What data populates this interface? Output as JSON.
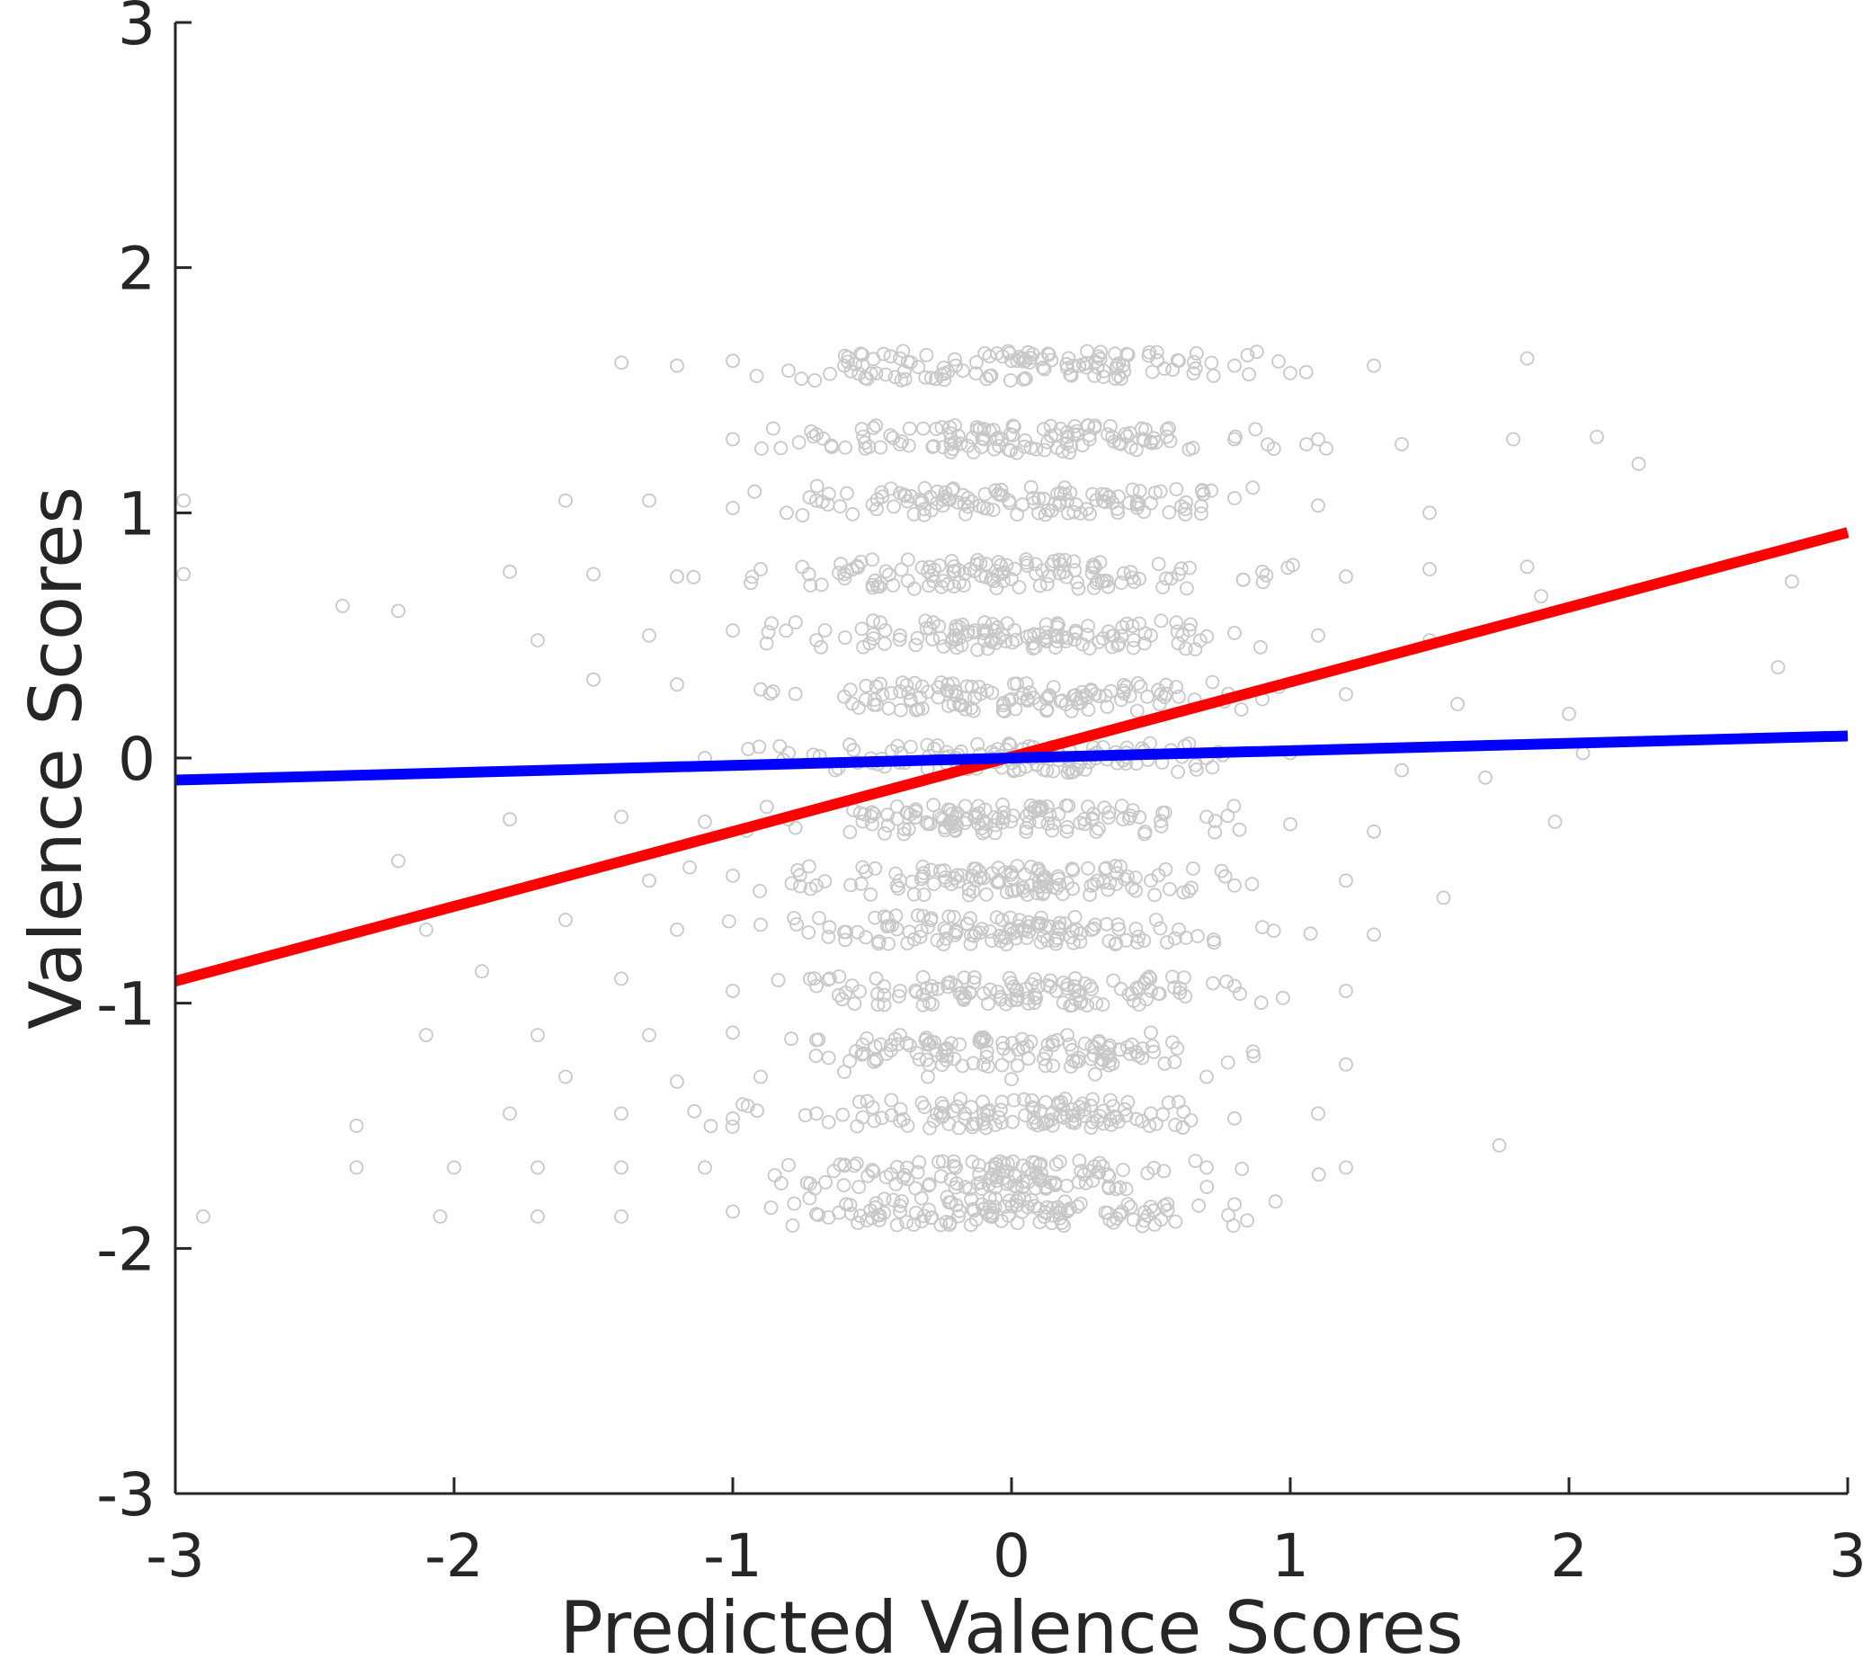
{
  "chart_data": {
    "type": "scatter",
    "title": "",
    "xlabel": "Predicted Valence Scores",
    "ylabel": "Valence Scores",
    "xlim": [
      -3,
      3
    ],
    "ylim": [
      -3,
      3
    ],
    "xticks": [
      -3,
      -2,
      -1,
      0,
      1,
      2,
      3
    ],
    "yticks": [
      -3,
      -2,
      -1,
      0,
      1,
      2,
      3
    ],
    "xtick_labels": [
      "-3",
      "-2",
      "-1",
      "0",
      "1",
      "2",
      "3"
    ],
    "ytick_labels": [
      "-3",
      "-2",
      "-1",
      "0",
      "1",
      "2",
      "3"
    ],
    "grid": false,
    "legend": "none",
    "scatter": {
      "marker": "open-circle",
      "color": "#c8c8c8",
      "y_levels": [
        1.6,
        1.3,
        1.05,
        0.75,
        0.5,
        0.25,
        0.0,
        -0.25,
        -0.5,
        -0.7,
        -0.95,
        -1.2,
        -1.45,
        -1.7,
        -1.85
      ],
      "points": [
        [
          -1.2,
          1.6
        ],
        [
          -1.0,
          1.62
        ],
        [
          -0.8,
          1.58
        ],
        [
          -0.6,
          1.6
        ],
        [
          -0.4,
          1.63
        ],
        [
          -0.2,
          1.6
        ],
        [
          0.0,
          1.62
        ],
        [
          0.2,
          1.59
        ],
        [
          0.4,
          1.6
        ],
        [
          0.6,
          1.62
        ],
        [
          0.8,
          1.6
        ],
        [
          1.0,
          1.57
        ],
        [
          1.3,
          1.6
        ],
        [
          1.85,
          1.63
        ],
        [
          -1.0,
          1.3
        ],
        [
          -0.7,
          1.32
        ],
        [
          -0.4,
          1.28
        ],
        [
          -0.1,
          1.3
        ],
        [
          0.2,
          1.31
        ],
        [
          0.5,
          1.29
        ],
        [
          0.8,
          1.3
        ],
        [
          1.1,
          1.3
        ],
        [
          1.4,
          1.28
        ],
        [
          1.8,
          1.3
        ],
        [
          2.1,
          1.31
        ],
        [
          -1.6,
          1.05
        ],
        [
          -1.3,
          1.05
        ],
        [
          -1.0,
          1.02
        ],
        [
          -0.7,
          1.05
        ],
        [
          -0.4,
          1.08
        ],
        [
          -0.1,
          1.02
        ],
        [
          0.2,
          1.05
        ],
        [
          0.5,
          1.04
        ],
        [
          0.8,
          1.06
        ],
        [
          1.1,
          1.03
        ],
        [
          1.5,
          1.0
        ],
        [
          2.25,
          1.2
        ],
        [
          -2.97,
          1.05
        ],
        [
          -2.97,
          0.75
        ],
        [
          -2.4,
          0.62
        ],
        [
          -2.2,
          0.6
        ],
        [
          -1.8,
          0.76
        ],
        [
          -1.5,
          0.75
        ],
        [
          -1.2,
          0.74
        ],
        [
          -0.9,
          0.77
        ],
        [
          -0.6,
          0.75
        ],
        [
          -0.3,
          0.76
        ],
        [
          0.0,
          0.73
        ],
        [
          0.3,
          0.78
        ],
        [
          0.6,
          0.75
        ],
        [
          0.9,
          0.76
        ],
        [
          1.2,
          0.74
        ],
        [
          1.5,
          0.77
        ],
        [
          1.85,
          0.78
        ],
        [
          2.8,
          0.72
        ],
        [
          -1.7,
          0.48
        ],
        [
          -1.3,
          0.5
        ],
        [
          -1.0,
          0.52
        ],
        [
          -0.7,
          0.48
        ],
        [
          -0.4,
          0.5
        ],
        [
          -0.1,
          0.52
        ],
        [
          0.2,
          0.49
        ],
        [
          0.5,
          0.5
        ],
        [
          0.8,
          0.51
        ],
        [
          1.1,
          0.5
        ],
        [
          1.5,
          0.48
        ],
        [
          1.9,
          0.66
        ],
        [
          -1.5,
          0.32
        ],
        [
          -1.2,
          0.3
        ],
        [
          -0.9,
          0.28
        ],
        [
          -0.6,
          0.25
        ],
        [
          -0.3,
          0.27
        ],
        [
          0.0,
          0.24
        ],
        [
          0.3,
          0.26
        ],
        [
          0.6,
          0.25
        ],
        [
          0.9,
          0.24
        ],
        [
          1.2,
          0.26
        ],
        [
          1.6,
          0.22
        ],
        [
          2.0,
          0.18
        ],
        [
          2.75,
          0.37
        ],
        [
          -1.1,
          0.0
        ],
        [
          -0.8,
          0.02
        ],
        [
          -0.5,
          -0.02
        ],
        [
          -0.2,
          0.0
        ],
        [
          0.1,
          0.01
        ],
        [
          0.4,
          -0.01
        ],
        [
          0.7,
          0.0
        ],
        [
          1.0,
          0.02
        ],
        [
          1.4,
          -0.05
        ],
        [
          1.7,
          -0.08
        ],
        [
          2.05,
          0.02
        ],
        [
          -2.2,
          -0.42
        ],
        [
          -1.8,
          -0.25
        ],
        [
          -1.4,
          -0.24
        ],
        [
          -1.1,
          -0.26
        ],
        [
          -0.8,
          -0.25
        ],
        [
          -0.5,
          -0.27
        ],
        [
          -0.2,
          -0.24
        ],
        [
          0.1,
          -0.26
        ],
        [
          0.4,
          -0.25
        ],
        [
          0.7,
          -0.24
        ],
        [
          1.0,
          -0.27
        ],
        [
          1.3,
          -0.3
        ],
        [
          1.95,
          -0.26
        ],
        [
          -1.3,
          -0.5
        ],
        [
          -1.0,
          -0.48
        ],
        [
          -0.7,
          -0.52
        ],
        [
          -0.4,
          -0.5
        ],
        [
          -0.1,
          -0.49
        ],
        [
          0.2,
          -0.51
        ],
        [
          0.5,
          -0.5
        ],
        [
          0.8,
          -0.52
        ],
        [
          1.2,
          -0.5
        ],
        [
          1.55,
          -0.57
        ],
        [
          -2.1,
          -0.7
        ],
        [
          -1.6,
          -0.66
        ],
        [
          -1.2,
          -0.7
        ],
        [
          -0.9,
          -0.68
        ],
        [
          -0.6,
          -0.71
        ],
        [
          -0.3,
          -0.69
        ],
        [
          0.0,
          -0.7
        ],
        [
          0.3,
          -0.68
        ],
        [
          0.6,
          -0.7
        ],
        [
          0.9,
          -0.69
        ],
        [
          1.3,
          -0.72
        ],
        [
          -1.9,
          -0.87
        ],
        [
          -1.4,
          -0.9
        ],
        [
          -1.0,
          -0.95
        ],
        [
          -0.7,
          -0.93
        ],
        [
          -0.4,
          -0.95
        ],
        [
          -0.1,
          -0.96
        ],
        [
          0.2,
          -0.94
        ],
        [
          0.5,
          -0.95
        ],
        [
          0.8,
          -0.93
        ],
        [
          1.2,
          -0.95
        ],
        [
          -2.1,
          -1.13
        ],
        [
          -1.7,
          -1.13
        ],
        [
          -1.3,
          -1.13
        ],
        [
          -1.0,
          -1.12
        ],
        [
          -0.7,
          -1.15
        ],
        [
          -0.4,
          -1.13
        ],
        [
          -0.1,
          -1.14
        ],
        [
          0.2,
          -1.13
        ],
        [
          0.5,
          -1.12
        ],
        [
          1.2,
          -1.25
        ],
        [
          -1.6,
          -1.3
        ],
        [
          -1.2,
          -1.32
        ],
        [
          -0.9,
          -1.3
        ],
        [
          -0.6,
          -1.28
        ],
        [
          -0.3,
          -1.3
        ],
        [
          0.0,
          -1.31
        ],
        [
          0.3,
          -1.29
        ],
        [
          0.7,
          -1.3
        ],
        [
          -2.35,
          -1.5
        ],
        [
          -1.8,
          -1.45
        ],
        [
          -1.4,
          -1.45
        ],
        [
          -1.0,
          -1.47
        ],
        [
          -0.7,
          -1.45
        ],
        [
          -0.4,
          -1.48
        ],
        [
          -0.1,
          -1.45
        ],
        [
          0.2,
          -1.46
        ],
        [
          0.5,
          -1.45
        ],
        [
          0.8,
          -1.47
        ],
        [
          1.1,
          -1.45
        ],
        [
          1.75,
          -1.58
        ],
        [
          -2.35,
          -1.67
        ],
        [
          -2.0,
          -1.67
        ],
        [
          -1.7,
          -1.67
        ],
        [
          -1.4,
          -1.67
        ],
        [
          -1.1,
          -1.67
        ],
        [
          -0.8,
          -1.66
        ],
        [
          -0.5,
          -1.68
        ],
        [
          -0.2,
          -1.67
        ],
        [
          0.1,
          -1.66
        ],
        [
          0.4,
          -1.68
        ],
        [
          0.7,
          -1.67
        ],
        [
          1.2,
          -1.67
        ],
        [
          -2.9,
          -1.87
        ],
        [
          -2.05,
          -1.87
        ],
        [
          -1.7,
          -1.87
        ],
        [
          -1.4,
          -1.87
        ],
        [
          -1.0,
          -1.85
        ],
        [
          -0.7,
          -1.86
        ],
        [
          -0.4,
          -1.85
        ],
        [
          -0.1,
          -1.84
        ],
        [
          0.2,
          -1.85
        ],
        [
          0.5,
          -1.83
        ],
        [
          0.8,
          -1.82
        ]
      ]
    },
    "lines": [
      {
        "color": "#ff0000",
        "x": [
          -3,
          3
        ],
        "y": [
          -0.91,
          0.92
        ]
      },
      {
        "color": "#0000ff",
        "x": [
          -3,
          3
        ],
        "y": [
          -0.09,
          0.09
        ]
      }
    ]
  }
}
